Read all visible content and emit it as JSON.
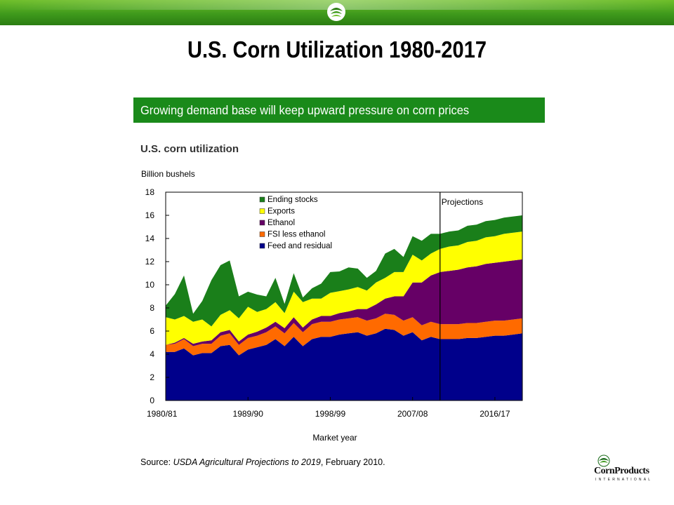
{
  "slide": {
    "title": "U.S. Corn Utilization 1980-2017",
    "banner": "Growing demand base will keep upward pressure on corn prices"
  },
  "colors": {
    "band": "#3f9a1c",
    "banner": "#1a8a1a",
    "feed": "#00008b",
    "fsi": "#ff6a00",
    "ethanol": "#660066",
    "exports": "#ffff00",
    "stocks": "#1a7f1a"
  },
  "logo": {
    "brand": "CornProducts",
    "sub": "INTERNATIONAL",
    "icon": "corn-products-emblem"
  },
  "chart_data": {
    "type": "area",
    "stacked": true,
    "title": "U.S. corn utilization",
    "ylabel": "Billion bushels",
    "xlabel": "Market year",
    "ylim": [
      0,
      18
    ],
    "yticks": [
      0,
      2,
      4,
      6,
      8,
      10,
      12,
      14,
      16,
      18
    ],
    "xtick_labels": [
      "1980/81",
      "1989/90",
      "1998/99",
      "2007/08",
      "2016/17"
    ],
    "categories": [
      "1980/81",
      "1981/82",
      "1982/83",
      "1983/84",
      "1984/85",
      "1985/86",
      "1986/87",
      "1987/88",
      "1988/89",
      "1989/90",
      "1990/91",
      "1991/92",
      "1992/93",
      "1993/94",
      "1994/95",
      "1995/96",
      "1996/97",
      "1997/98",
      "1998/99",
      "1999/00",
      "2000/01",
      "2001/02",
      "2002/03",
      "2003/04",
      "2004/05",
      "2005/06",
      "2006/07",
      "2007/08",
      "2008/09",
      "2009/10",
      "2010/11",
      "2011/12",
      "2012/13",
      "2013/14",
      "2014/15",
      "2015/16",
      "2016/17",
      "2017/18",
      "2018/19",
      "2019/20"
    ],
    "projection_start": "2010/11",
    "annotation": "Projections",
    "legend_position": "top-left",
    "grid": false,
    "series": [
      {
        "name": "Feed and residual",
        "color": "#00008b",
        "values": [
          4.2,
          4.2,
          4.5,
          3.9,
          4.1,
          4.1,
          4.7,
          4.8,
          3.9,
          4.4,
          4.6,
          4.8,
          5.3,
          4.7,
          5.5,
          4.7,
          5.3,
          5.5,
          5.5,
          5.7,
          5.8,
          5.9,
          5.6,
          5.8,
          6.2,
          6.1,
          5.6,
          5.9,
          5.2,
          5.5,
          5.3,
          5.3,
          5.3,
          5.4,
          5.4,
          5.5,
          5.6,
          5.6,
          5.7,
          5.8
        ]
      },
      {
        "name": "FSI less ethanol",
        "color": "#ff6a00",
        "values": [
          0.6,
          0.7,
          0.8,
          0.8,
          0.8,
          0.8,
          0.9,
          1.0,
          0.9,
          1.0,
          1.0,
          1.1,
          1.1,
          1.1,
          1.2,
          1.2,
          1.3,
          1.3,
          1.3,
          1.3,
          1.3,
          1.3,
          1.3,
          1.3,
          1.3,
          1.3,
          1.3,
          1.3,
          1.3,
          1.3,
          1.3,
          1.3,
          1.3,
          1.3,
          1.3,
          1.3,
          1.3,
          1.3,
          1.3,
          1.3
        ]
      },
      {
        "name": "Ethanol",
        "color": "#660066",
        "values": [
          0.0,
          0.1,
          0.1,
          0.2,
          0.2,
          0.3,
          0.3,
          0.3,
          0.3,
          0.3,
          0.35,
          0.4,
          0.4,
          0.45,
          0.5,
          0.4,
          0.4,
          0.5,
          0.5,
          0.55,
          0.6,
          0.7,
          1.0,
          1.2,
          1.3,
          1.6,
          2.1,
          3.0,
          3.7,
          4.0,
          4.5,
          4.6,
          4.7,
          4.8,
          4.9,
          5.0,
          5.0,
          5.1,
          5.1,
          5.1
        ]
      },
      {
        "name": "Exports",
        "color": "#ffff00",
        "values": [
          2.4,
          2.0,
          1.9,
          1.9,
          1.9,
          1.2,
          1.5,
          1.7,
          2.0,
          2.4,
          1.7,
          1.6,
          1.7,
          1.3,
          2.2,
          2.2,
          1.8,
          1.5,
          2.0,
          1.9,
          1.9,
          1.9,
          1.6,
          1.9,
          1.8,
          2.1,
          2.1,
          2.4,
          1.9,
          1.9,
          2.0,
          2.1,
          2.1,
          2.2,
          2.2,
          2.3,
          2.3,
          2.4,
          2.4,
          2.4
        ]
      },
      {
        "name": "Ending stocks",
        "color": "#1a7f1a",
        "values": [
          1.0,
          2.2,
          3.5,
          0.7,
          1.6,
          4.0,
          4.3,
          4.3,
          1.9,
          1.3,
          1.5,
          1.1,
          2.1,
          0.8,
          1.6,
          0.4,
          0.9,
          1.3,
          1.8,
          1.7,
          1.9,
          1.6,
          1.1,
          1.0,
          2.1,
          2.0,
          1.3,
          1.6,
          1.7,
          1.7,
          1.3,
          1.3,
          1.3,
          1.4,
          1.4,
          1.4,
          1.4,
          1.4,
          1.4,
          1.4
        ]
      }
    ]
  },
  "source": {
    "prefix": "Source: ",
    "title": "USDA Agricultural Projections to 2019",
    "suffix": ", February 2010."
  }
}
